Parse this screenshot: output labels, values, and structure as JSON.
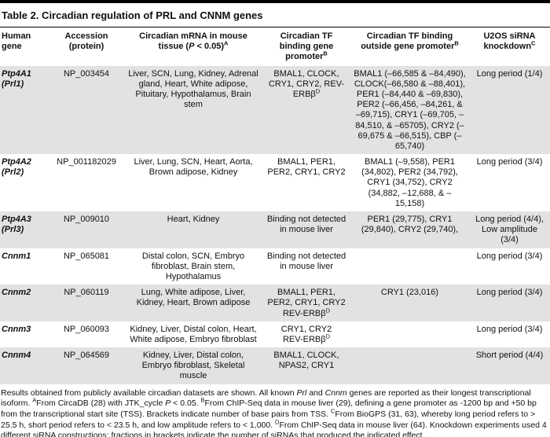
{
  "title": "Table 2. Circadian regulation of PRL and CNNM genes",
  "colors": {
    "row_stripe": "#e2e2e2",
    "rule": "#000000",
    "text": "#111111"
  },
  "table": {
    "headers": {
      "gene": "Human gene",
      "accession": "Accession (protein)",
      "tissue": [
        {
          "t": "Circadian mRNA in mouse tissue ("
        },
        {
          "i": "P"
        },
        {
          "t": " < 0.05)"
        },
        {
          "s": "A"
        }
      ],
      "tf_promoter": [
        {
          "t": "Circadian TF binding gene promoter"
        },
        {
          "s": "B"
        }
      ],
      "tf_outside": [
        {
          "t": "Circadian TF binding outside gene promoter"
        },
        {
          "s": "B"
        }
      ],
      "knockdown": [
        {
          "t": "U2OS siRNA knockdown"
        },
        {
          "s": "C"
        }
      ]
    },
    "rows": [
      {
        "gene": "Ptp4A1 (Prl1)",
        "accession": "NP_003454",
        "tissue": "Liver, SCN, Lung, Kidney, Adrenal gland, Heart, White adipose, Pituitary, Hypothalamus, Brain stem",
        "tf_promoter": [
          {
            "t": "BMAL1, CLOCK, CRY1, CRY2, REV-ERBβ"
          },
          {
            "s": "D"
          }
        ],
        "tf_outside": "BMAL1 (–66,585 & –84,490), CLOCK(–66,580 & –88,401), PER1 (–84,440 & –69,830), PER2 (–66,456, –84,261, & –69,715), CRY1 (–69,705, –84,510, & –65705), CRY2 (–69,675 & –66,515), CBP (–65,740)",
        "knockdown": "Long period (1/4)"
      },
      {
        "gene": "Ptp4A2 (Prl2)",
        "accession": "NP_001182029",
        "tissue": "Liver, Lung, SCN, Heart, Aorta, Brown adipose, Kidney",
        "tf_promoter": "BMAL1, PER1, PER2, CRY1, CRY2",
        "tf_outside": "BMAL1 (–9,558), PER1 (34,802), PER2 (34,792), CRY1 (34,752), CRY2 (34,882, –12,688, & –15,158)",
        "knockdown": "Long period (3/4)"
      },
      {
        "gene": "Ptp4A3 (Prl3)",
        "accession": "NP_009010",
        "tissue": "Heart, Kidney",
        "tf_promoter": "Binding not detected in mouse liver",
        "tf_outside": "PER1 (29,775), CRY1 (29,840), CRY2 (29,740),",
        "knockdown": "Long period (4/4), Low amplitude (3/4)"
      },
      {
        "gene": "Cnnm1",
        "accession": "NP_065081",
        "tissue": "Distal colon, SCN, Embryo fibroblast, Brain stem, Hypothalamus",
        "tf_promoter": "Binding not detected in mouse liver",
        "tf_outside": "",
        "knockdown": "Long period (3/4)"
      },
      {
        "gene": "Cnnm2",
        "accession": "NP_060119",
        "tissue": "Lung, White adipose, Liver, Kidney, Heart, Brown adipose",
        "tf_promoter": [
          {
            "t": "BMAL1, PER1, PER2, CRY1, CRY2\nREV-ERBβ"
          },
          {
            "s": "D"
          }
        ],
        "tf_outside": "CRY1 (23,016)",
        "knockdown": "Long period (3/4)"
      },
      {
        "gene": "Cnnm3",
        "accession": "NP_060093",
        "tissue": "Kidney, Liver, Distal colon, Heart, White adipose, Embryo fibroblast",
        "tf_promoter": [
          {
            "t": "CRY1, CRY2\nREV-ERBβ"
          },
          {
            "s": "D"
          }
        ],
        "tf_outside": "",
        "knockdown": "Long period (3/4)"
      },
      {
        "gene": "Cnnm4",
        "accession": "NP_064569",
        "tissue": "Kidney, Liver, Distal colon, Embryo fibroblast, Skeletal muscle",
        "tf_promoter": "BMAL1, CLOCK, NPAS2, CRY1",
        "tf_outside": "",
        "knockdown": "Short period (4/4)"
      }
    ]
  },
  "footnote": [
    {
      "t": "Results obtained from publicly available circadian datasets are shown. All known "
    },
    {
      "i": "Prl"
    },
    {
      "t": " and "
    },
    {
      "i": "Cnnm"
    },
    {
      "t": " genes are reported as their longest transcriptional isoform. "
    },
    {
      "s": "A"
    },
    {
      "t": "From CircaDB (28) with JTK_cycle "
    },
    {
      "i": "P"
    },
    {
      "t": " < 0.05. "
    },
    {
      "s": "B"
    },
    {
      "t": "From ChIP-Seq data in mouse liver (29), defining a gene promoter as -1200 bp and +50 bp from the transcriptional start site (TSS). Brackets indicate number of base pairs from TSS. "
    },
    {
      "s": "C"
    },
    {
      "t": "From BioGPS (31, 63), whereby long period refers to > 25.5 h, short period refers to < 23.5 h, and low amplitude refers to < 1,000. "
    },
    {
      "s": "D"
    },
    {
      "t": "From ChIP-Seq data in mouse liver (64). Knockdown experiments used 4 different siRNA constructions; fractions in brackets indicate the number of siRNAs that produced the indicated effect."
    }
  ]
}
